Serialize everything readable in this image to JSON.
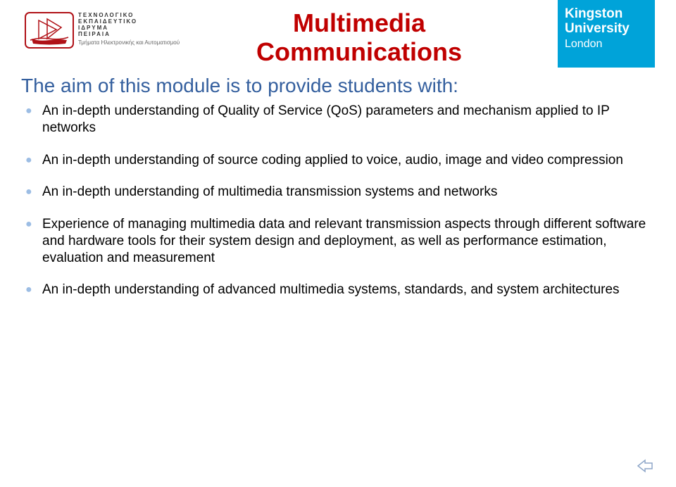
{
  "colors": {
    "title": "#c00000",
    "intro": "#345f9e",
    "bullet_marker": "#9cbde4",
    "bullet_text": "#000000",
    "kingston_bg": "#00a3d9",
    "kingston_text": "#ffffff",
    "tei_red": "#b01117",
    "nav_arrow": "#8da6c8",
    "background": "#ffffff"
  },
  "logo_left": {
    "line1": "ΤΕΧΝΟΛΟΓΙΚΟ",
    "line2": "ΕΚΠΑΙΔΕΥΤΙΚΟ",
    "line3": "ΙΔΡΥΜΑ",
    "line4": "ΠΕΙΡΑΙΑ",
    "sub": "Τμήματα Ηλεκτρονικής και Αυτοματισμού"
  },
  "kingston": {
    "line1": "Kingston",
    "line2": "University",
    "line3": "London"
  },
  "title": {
    "line1": "Multimedia",
    "line2": "Communications"
  },
  "intro": "The aim of this module is to provide students with:",
  "bullets": [
    "An in-depth understanding of Quality of Service (QoS) parameters and mechanism applied to IP networks",
    "An in-depth understanding of source coding applied to voice, audio, image and video compression",
    "An in-depth understanding of multimedia transmission systems and networks",
    "Experience of managing multimedia data and relevant transmission aspects through different software and hardware tools for their system design and deployment, as well as performance estimation, evaluation and measurement",
    "An in-depth understanding of advanced multimedia systems, standards, and system architectures"
  ]
}
